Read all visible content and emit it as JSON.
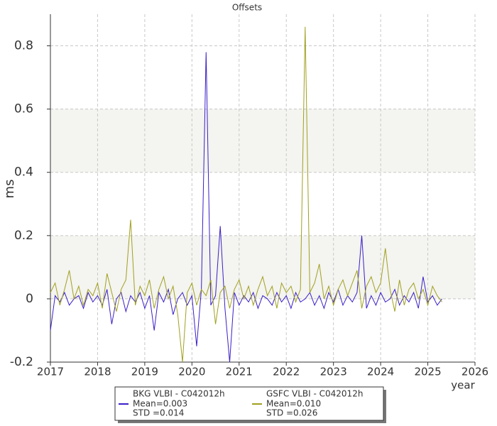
{
  "chart_data": {
    "type": "line",
    "title": "Offsets",
    "xlabel": "year",
    "ylabel": "ms",
    "xlim": [
      2017,
      2026
    ],
    "xticks": [
      2017,
      2018,
      2019,
      2020,
      2021,
      2022,
      2023,
      2024,
      2025,
      2026
    ],
    "ylim": [
      -0.2,
      0.9
    ],
    "yticks": [
      -0.2,
      0,
      0.2,
      0.4,
      0.6,
      0.8
    ],
    "grid": true,
    "x": [
      2017.0,
      2017.1,
      2017.2,
      2017.3,
      2017.4,
      2017.5,
      2017.6,
      2017.7,
      2017.8,
      2017.9,
      2018.0,
      2018.1,
      2018.2,
      2018.3,
      2018.4,
      2018.5,
      2018.6,
      2018.7,
      2018.8,
      2018.9,
      2019.0,
      2019.1,
      2019.2,
      2019.3,
      2019.4,
      2019.5,
      2019.6,
      2019.7,
      2019.8,
      2019.9,
      2020.0,
      2020.1,
      2020.2,
      2020.3,
      2020.4,
      2020.5,
      2020.6,
      2020.7,
      2020.8,
      2020.9,
      2021.0,
      2021.1,
      2021.2,
      2021.3,
      2021.4,
      2021.5,
      2021.6,
      2021.7,
      2021.8,
      2021.9,
      2022.0,
      2022.1,
      2022.2,
      2022.3,
      2022.4,
      2022.5,
      2022.6,
      2022.7,
      2022.8,
      2022.9,
      2023.0,
      2023.1,
      2023.2,
      2023.3,
      2023.4,
      2023.5,
      2023.6,
      2023.7,
      2023.8,
      2023.9,
      2024.0,
      2024.1,
      2024.2,
      2024.3,
      2024.4,
      2024.5,
      2024.6,
      2024.7,
      2024.8,
      2024.9,
      2025.0,
      2025.1,
      2025.2,
      2025.3
    ],
    "series": [
      {
        "name": "BKG VLBI - C042012h",
        "color": "#3a1fc8",
        "stats": [
          "Mean=0.003",
          "STD =0.014"
        ],
        "values": [
          -0.1,
          0.01,
          -0.01,
          0.02,
          -0.02,
          0.0,
          0.01,
          -0.03,
          0.02,
          -0.01,
          0.01,
          -0.02,
          0.03,
          -0.08,
          0.0,
          0.02,
          -0.04,
          0.01,
          -0.01,
          0.02,
          -0.03,
          0.01,
          -0.1,
          0.02,
          -0.01,
          0.03,
          -0.05,
          0.0,
          0.02,
          -0.02,
          0.01,
          -0.15,
          0.03,
          0.78,
          -0.02,
          0.01,
          0.23,
          -0.03,
          -0.2,
          0.02,
          -0.02,
          0.01,
          -0.01,
          0.02,
          -0.03,
          0.01,
          0.0,
          -0.02,
          0.02,
          -0.01,
          0.01,
          -0.03,
          0.02,
          -0.01,
          0.0,
          0.02,
          -0.02,
          0.01,
          -0.03,
          0.02,
          -0.01,
          0.03,
          -0.02,
          0.01,
          -0.01,
          0.02,
          0.2,
          -0.03,
          0.01,
          -0.02,
          0.02,
          -0.01,
          0.0,
          0.03,
          -0.02,
          0.01,
          -0.01,
          0.02,
          -0.03,
          0.07,
          -0.01,
          0.01,
          -0.02,
          0.0
        ]
      },
      {
        "name": "GSFC VLBI - C042012h",
        "color": "#a0a020",
        "stats": [
          "Mean=0.010",
          "STD =0.026"
        ],
        "values": [
          0.02,
          0.05,
          -0.02,
          0.03,
          0.09,
          0.0,
          0.04,
          -0.02,
          0.03,
          0.01,
          0.05,
          -0.03,
          0.08,
          0.02,
          -0.04,
          0.03,
          0.06,
          0.25,
          -0.02,
          0.04,
          0.01,
          0.06,
          -0.03,
          0.03,
          0.07,
          0.0,
          0.04,
          -0.05,
          -0.2,
          0.02,
          0.05,
          -0.02,
          0.03,
          0.01,
          0.06,
          -0.08,
          0.02,
          0.04,
          -0.03,
          0.03,
          0.06,
          0.0,
          0.04,
          -0.02,
          0.03,
          0.07,
          0.01,
          0.04,
          -0.03,
          0.05,
          0.02,
          0.04,
          -0.01,
          0.03,
          0.86,
          0.02,
          0.05,
          0.11,
          0.0,
          0.04,
          -0.02,
          0.03,
          0.06,
          0.01,
          0.05,
          0.09,
          -0.03,
          0.04,
          0.07,
          0.02,
          0.05,
          0.16,
          0.03,
          -0.04,
          0.06,
          -0.02,
          0.03,
          0.05,
          0.0,
          0.03,
          -0.02,
          0.04,
          0.01,
          -0.01
        ]
      }
    ]
  }
}
